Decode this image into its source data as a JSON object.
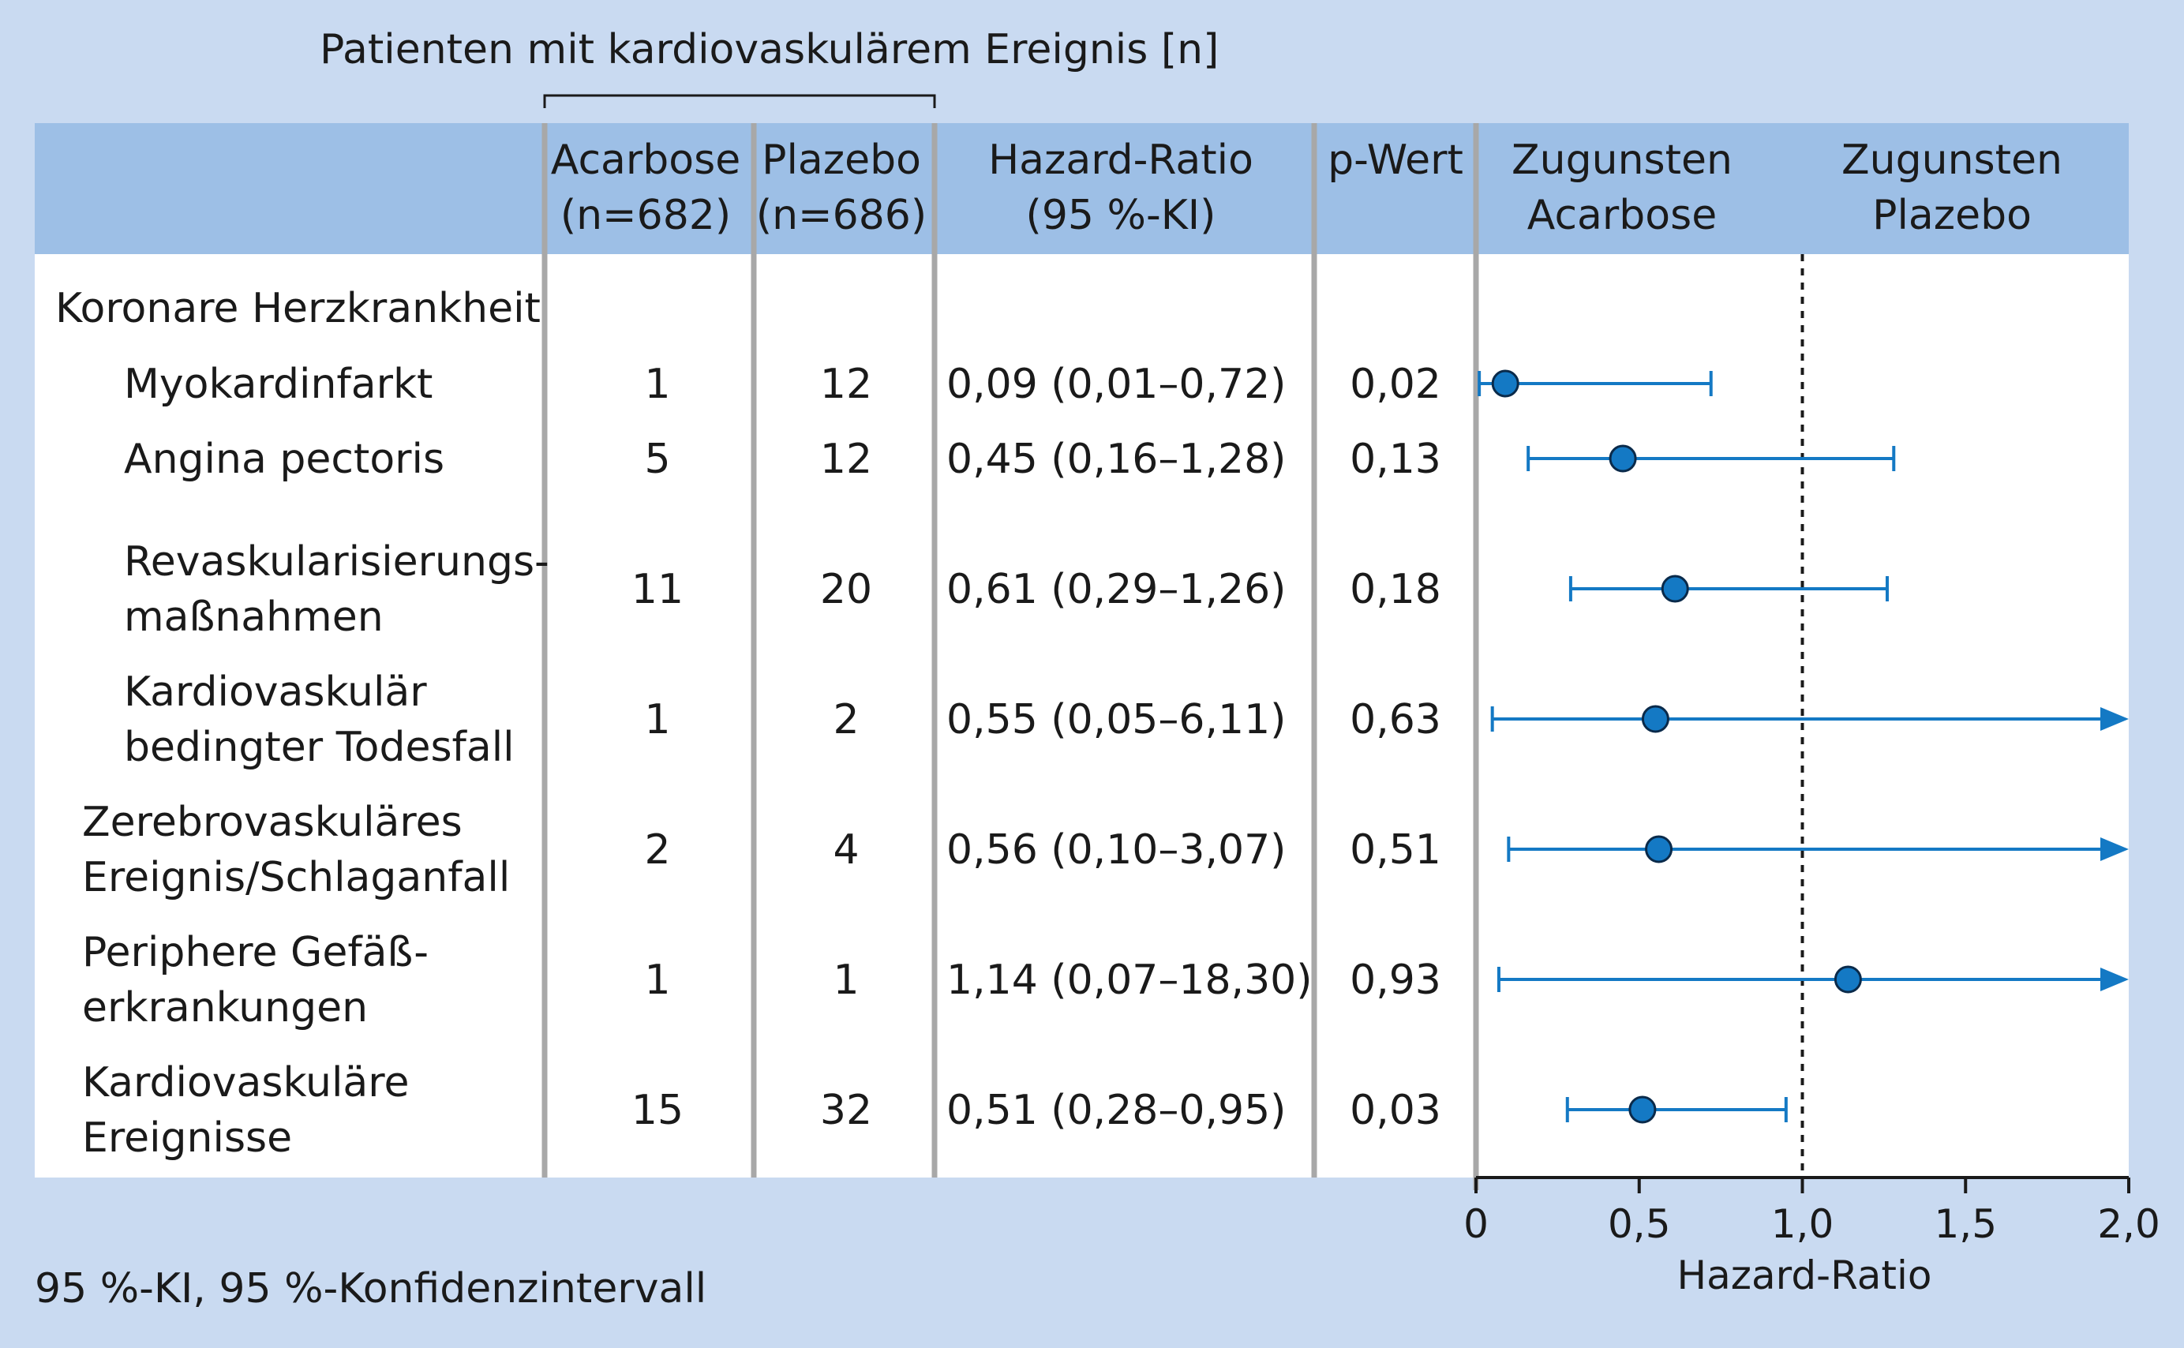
{
  "header": {
    "group_label": "Patienten mit kardiovaskulärem Ereignis [n]",
    "col_acarbose": [
      "Acarbose",
      "(n=682)"
    ],
    "col_plazebo": [
      "Plazebo",
      "(n=686)"
    ],
    "col_hr": [
      "Hazard-Ratio",
      "(95 %-KI)"
    ],
    "col_p": "p-Wert",
    "favor_acarbose": [
      "Zugunsten",
      "Acarbose"
    ],
    "favor_plazebo": [
      "Zugunsten",
      "Plazebo"
    ]
  },
  "footnote": "95 %-KI, 95 %-Konfidenzintervall",
  "colors": {
    "background": "#c9daf1",
    "header_band": "#9dbfe6",
    "marker": "#1479c4",
    "divider": "#a8a8a8"
  },
  "chart_data": {
    "type": "forest",
    "xlabel": "Hazard-Ratio",
    "xlim": [
      0,
      2.0
    ],
    "xticks": [
      0,
      0.5,
      1.0,
      1.5,
      2.0
    ],
    "xtick_labels": [
      "0",
      "0,5",
      "1,0",
      "1,5",
      "2,0"
    ],
    "reference_line": 1.0,
    "group_heading": "Koronare Herzkrankheit",
    "rows": [
      {
        "label": [
          "Myokardinfarkt"
        ],
        "indent": 2,
        "acarbose": "1",
        "plazebo": "12",
        "hr_text": "0,09 (0,01–0,72)",
        "p": "0,02",
        "hr": 0.09,
        "ci_low": 0.01,
        "ci_high": 0.72,
        "arrow": false
      },
      {
        "label": [
          "Angina pectoris"
        ],
        "indent": 2,
        "acarbose": "5",
        "plazebo": "12",
        "hr_text": "0,45 (0,16–1,28)",
        "p": "0,13",
        "hr": 0.45,
        "ci_low": 0.16,
        "ci_high": 1.28,
        "arrow": false
      },
      {
        "label": [
          "Revaskularisierungs-",
          "maßnahmen"
        ],
        "indent": 2,
        "acarbose": "11",
        "plazebo": "20",
        "hr_text": "0,61 (0,29–1,26)",
        "p": "0,18",
        "hr": 0.61,
        "ci_low": 0.29,
        "ci_high": 1.26,
        "arrow": false
      },
      {
        "label": [
          "Kardiovaskulär",
          "bedingter Todesfall"
        ],
        "indent": 2,
        "acarbose": "1",
        "plazebo": "2",
        "hr_text": "0,55 (0,05–6,11)",
        "p": "0,63",
        "hr": 0.55,
        "ci_low": 0.05,
        "ci_high": 6.11,
        "arrow": true
      },
      {
        "label": [
          "Zerebrovaskuläres",
          "Ereignis/Schlaganfall"
        ],
        "indent": 1,
        "acarbose": "2",
        "plazebo": "4",
        "hr_text": "0,56 (0,10–3,07)",
        "p": "0,51",
        "hr": 0.56,
        "ci_low": 0.1,
        "ci_high": 3.07,
        "arrow": true
      },
      {
        "label": [
          "Periphere Gefäß-",
          "erkrankungen"
        ],
        "indent": 1,
        "acarbose": "1",
        "plazebo": "1",
        "hr_text": "1,14 (0,07–18,30)",
        "p": "0,93",
        "hr": 1.14,
        "ci_low": 0.07,
        "ci_high": 18.3,
        "arrow": true
      },
      {
        "label": [
          "Kardiovaskuläre",
          "Ereignisse"
        ],
        "indent": 1,
        "acarbose": "15",
        "plazebo": "32",
        "hr_text": "0,51 (0,28–0,95)",
        "p": "0,03",
        "hr": 0.51,
        "ci_low": 0.28,
        "ci_high": 0.95,
        "arrow": false
      }
    ]
  }
}
